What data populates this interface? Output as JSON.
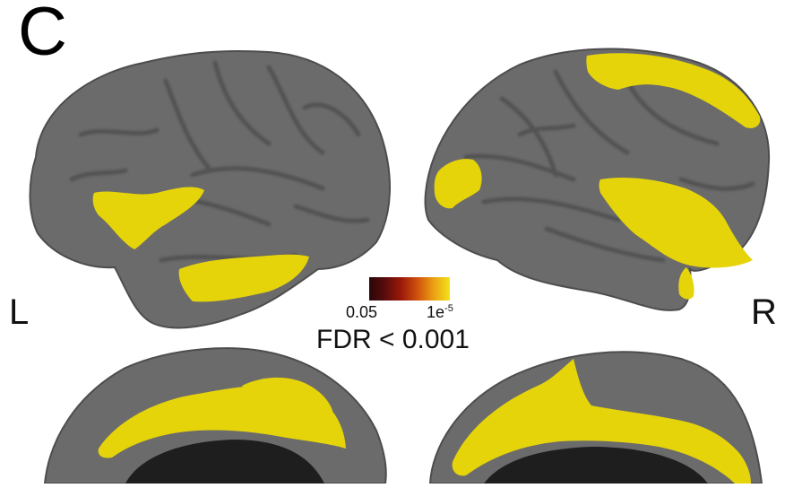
{
  "figure": {
    "panel_letter": "C",
    "hemisphere_left_label": "L",
    "hemisphere_right_label": "R",
    "colorbar": {
      "min_label": "0.05",
      "max_label_base": "1e",
      "max_label_exponent": "-5",
      "threshold_label": "FDR < 0.001",
      "colors": [
        "#2a0708",
        "#5a0c0c",
        "#9c1a0a",
        "#d0520d",
        "#eba013",
        "#f3e31a"
      ]
    },
    "colors": {
      "cortex": "#6b6b6b",
      "cortex_shadow": "#4d4d4d",
      "activation": "#e6d40a",
      "medial_wall": "#1e1e1e",
      "background": "#ffffff"
    },
    "views": [
      "left-lateral",
      "right-lateral",
      "left-medial",
      "right-medial"
    ]
  }
}
